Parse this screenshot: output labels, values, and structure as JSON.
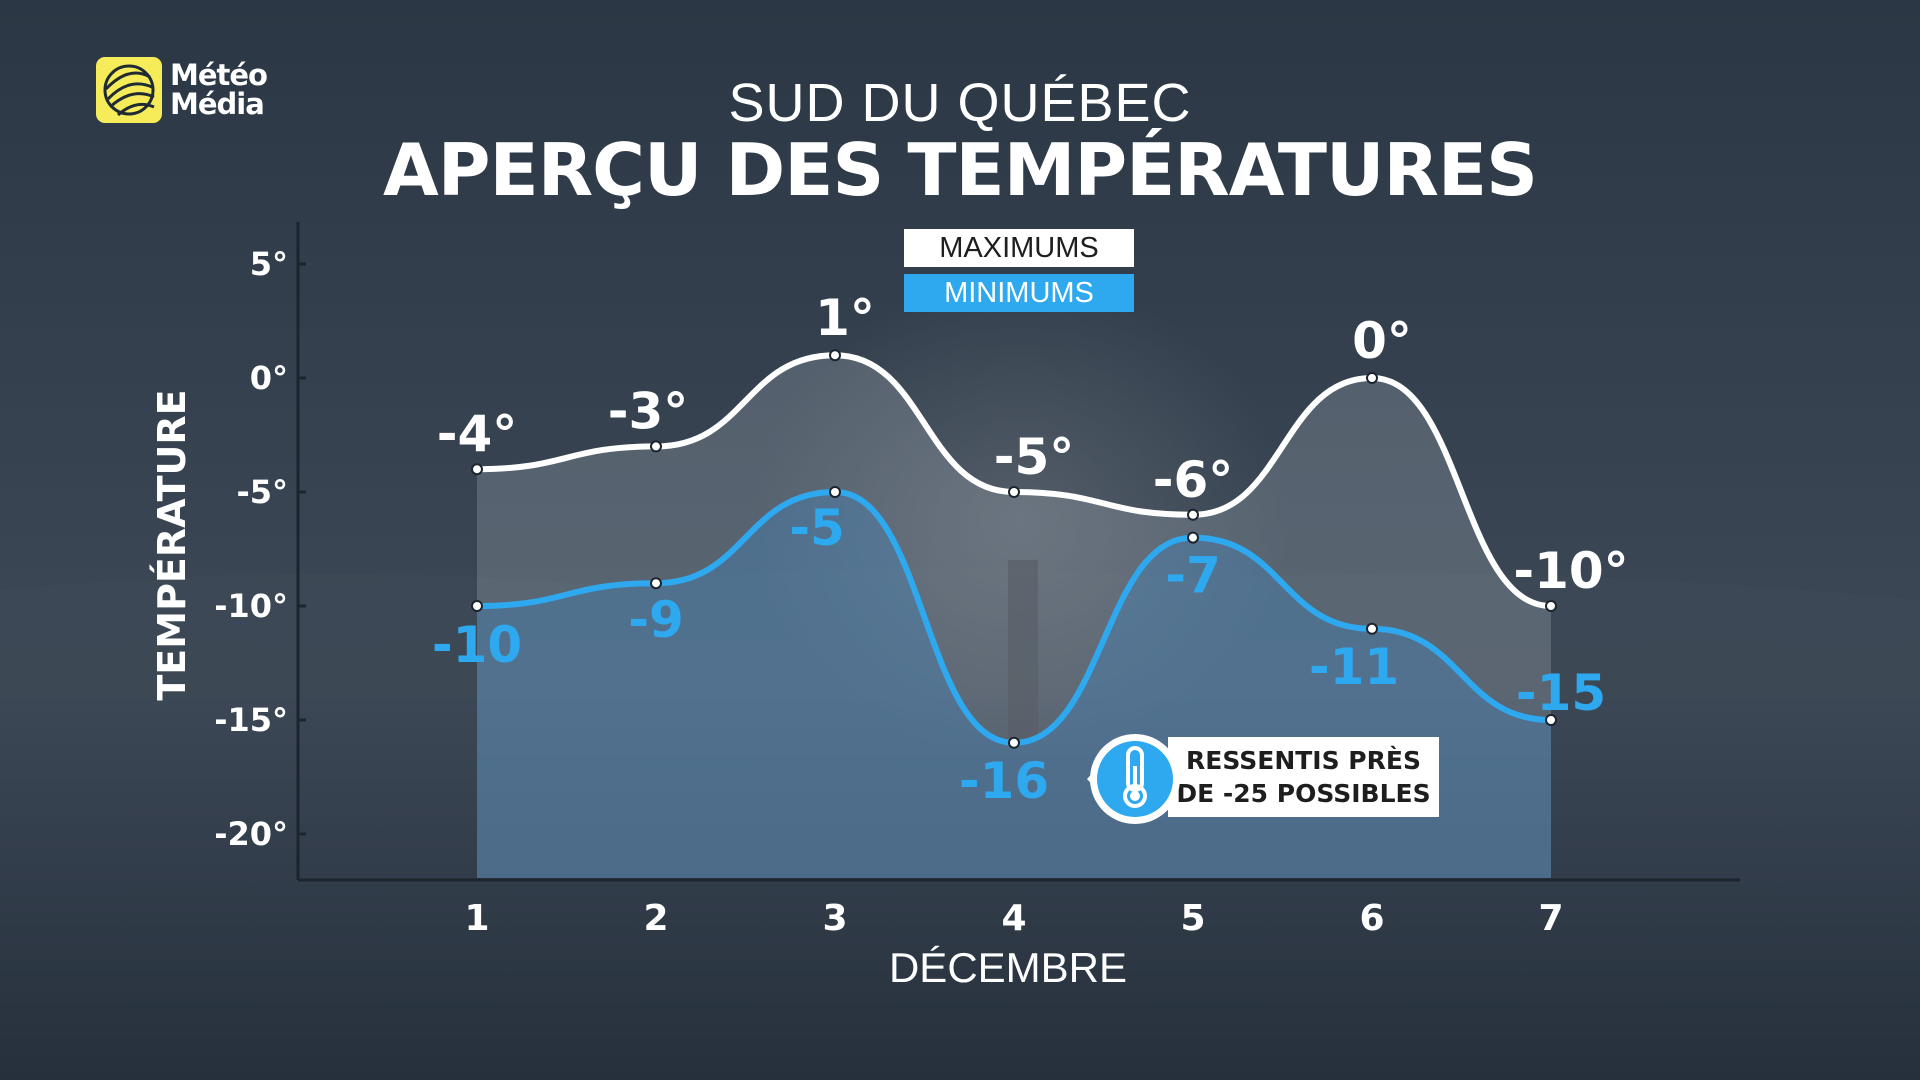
{
  "brand": {
    "line1": "Météo",
    "line2": "Média"
  },
  "header": {
    "subtitle": "SUD DU QUÉBEC",
    "title": "APERÇU DES TEMPÉRATURES"
  },
  "legend": {
    "max_label": "MAXIMUMS",
    "min_label": "MINIMUMS"
  },
  "callout": {
    "line1": "RESSENTIS PRÈS",
    "line2": "DE -25 POSSIBLES"
  },
  "icons": {
    "logo": "meteomedia-globe-icon",
    "callout": "thermometer-icon"
  },
  "colors": {
    "max_line": "#ffffff",
    "min_line": "#2ea8ee",
    "background": "#33404c"
  },
  "chart_data": {
    "type": "line",
    "title": "APERÇU DES TEMPÉRATURES",
    "subtitle": "SUD DU QUÉBEC",
    "xlabel": "DÉCEMBRE",
    "ylabel": "TEMPÉRATURE",
    "x": [
      "1",
      "2",
      "3",
      "4",
      "5",
      "6",
      "7"
    ],
    "ylim": [
      -22,
      7
    ],
    "yticks": [
      5,
      0,
      -5,
      -10,
      -15,
      -20
    ],
    "ytick_labels": [
      "5°",
      "0°",
      "-5°",
      "-10°",
      "-15°",
      "-20°"
    ],
    "grid": false,
    "legend_position": "top-center",
    "series": [
      {
        "name": "MAXIMUMS",
        "values": [
          -4,
          -3,
          1,
          -5,
          -6,
          0,
          -10
        ],
        "labels": [
          "-4°",
          "-3°",
          "1°",
          "-5°",
          "-6°",
          "0°",
          "-10°"
        ]
      },
      {
        "name": "MINIMUMS",
        "values": [
          -10,
          -9,
          -5,
          -16,
          -7,
          -11,
          -15
        ],
        "labels": [
          "-10",
          "-9",
          "-5",
          "-16",
          "-7",
          "-11",
          "-15"
        ]
      }
    ]
  }
}
